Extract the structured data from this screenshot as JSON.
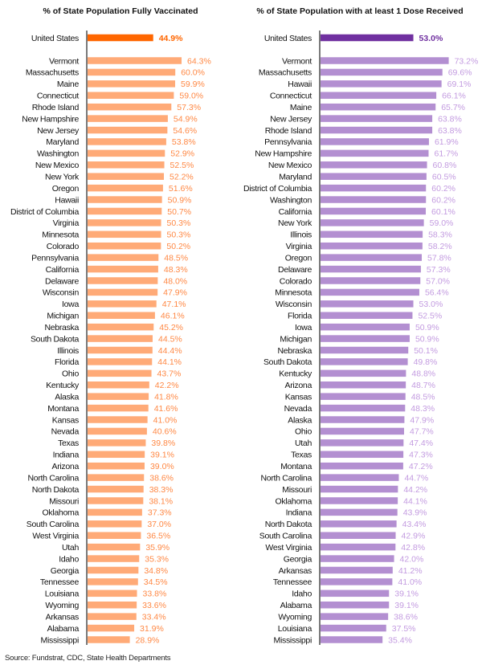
{
  "source": "Source: Fundstrat, CDC, State Health Departments",
  "chart_data": [
    {
      "type": "bar",
      "orientation": "horizontal",
      "title": "% of State Population Fully Vaccinated",
      "xlabel": "",
      "ylabel": "",
      "xlim": [
        0,
        70
      ],
      "grid": false,
      "unit": "%",
      "colors": {
        "highlight": "#ff6600",
        "bar": "#ffaa77",
        "label": "#ff8844",
        "highlight_label": "#ff6600"
      },
      "highlight": {
        "category": "United States",
        "value": 44.9,
        "label": "44.9%"
      },
      "categories": [
        "Vermont",
        "Massachusetts",
        "Maine",
        "Connecticut",
        "Rhode Island",
        "New Hampshire",
        "New Jersey",
        "Maryland",
        "Washington",
        "New Mexico",
        "New York",
        "Oregon",
        "Hawaii",
        "District of Columbia",
        "Virginia",
        "Minnesota",
        "Colorado",
        "Pennsylvania",
        "California",
        "Delaware",
        "Wisconsin",
        "Iowa",
        "Michigan",
        "Nebraska",
        "South Dakota",
        "Illinois",
        "Florida",
        "Ohio",
        "Kentucky",
        "Alaska",
        "Montana",
        "Kansas",
        "Nevada",
        "Texas",
        "Indiana",
        "Arizona",
        "North Carolina",
        "North Dakota",
        "Missouri",
        "Oklahoma",
        "South Carolina",
        "West Virginia",
        "Utah",
        "Idaho",
        "Georgia",
        "Tennessee",
        "Louisiana",
        "Wyoming",
        "Arkansas",
        "Alabama",
        "Mississippi"
      ],
      "values": [
        64.3,
        60.0,
        59.9,
        59.0,
        57.3,
        54.9,
        54.6,
        53.8,
        52.9,
        52.5,
        52.2,
        51.6,
        50.9,
        50.7,
        50.3,
        50.3,
        50.2,
        48.5,
        48.3,
        48.0,
        47.9,
        47.1,
        46.1,
        45.2,
        44.5,
        44.4,
        44.1,
        43.7,
        42.2,
        41.8,
        41.6,
        41.0,
        40.6,
        39.8,
        39.1,
        39.0,
        38.6,
        38.3,
        38.1,
        37.3,
        37.0,
        36.5,
        35.9,
        35.3,
        34.8,
        34.5,
        33.8,
        33.6,
        33.4,
        31.9,
        28.9
      ],
      "labels": [
        "64.3%",
        "60.0%",
        "59.9%",
        "59.0%",
        "57.3%",
        "54.9%",
        "54.6%",
        "53.8%",
        "52.9%",
        "52.5%",
        "52.2%",
        "51.6%",
        "50.9%",
        "50.7%",
        "50.3%",
        "50.3%",
        "50.2%",
        "48.5%",
        "48.3%",
        "48.0%",
        "47.9%",
        "47.1%",
        "46.1%",
        "45.2%",
        "44.5%",
        "44.4%",
        "44.1%",
        "43.7%",
        "42.2%",
        "41.8%",
        "41.6%",
        "41.0%",
        "40.6%",
        "39.8%",
        "39.1%",
        "39.0%",
        "38.6%",
        "38.3%",
        "38.1%",
        "37.3%",
        "37.0%",
        "36.5%",
        "35.9%",
        "35.3%",
        "34.8%",
        "34.5%",
        "33.8%",
        "33.6%",
        "33.4%",
        "31.9%",
        "28.9%"
      ]
    },
    {
      "type": "bar",
      "orientation": "horizontal",
      "title": "% of State Population with at least 1 Dose Received",
      "xlabel": "",
      "ylabel": "",
      "xlim": [
        0,
        75
      ],
      "grid": false,
      "unit": "%",
      "colors": {
        "highlight": "#7030a0",
        "bar": "#b38fd1",
        "label": "#c39be0",
        "highlight_label": "#7030a0"
      },
      "highlight": {
        "category": "United States",
        "value": 53.0,
        "label": "53.0%"
      },
      "categories": [
        "Vermont",
        "Massachusetts",
        "Hawaii",
        "Connecticut",
        "Maine",
        "New Jersey",
        "Rhode Island",
        "Pennsylvania",
        "New Hampshire",
        "New Mexico",
        "Maryland",
        "District of Columbia",
        "Washington",
        "California",
        "New York",
        "Illinois",
        "Virginia",
        "Oregon",
        "Delaware",
        "Colorado",
        "Minnesota",
        "Wisconsin",
        "Florida",
        "Iowa",
        "Michigan",
        "Nebraska",
        "South Dakota",
        "Kentucky",
        "Arizona",
        "Kansas",
        "Nevada",
        "Alaska",
        "Ohio",
        "Utah",
        "Texas",
        "Montana",
        "North Carolina",
        "Missouri",
        "Oklahoma",
        "Indiana",
        "North Dakota",
        "South Carolina",
        "West Virginia",
        "Georgia",
        "Arkansas",
        "Tennessee",
        "Idaho",
        "Alabama",
        "Wyoming",
        "Louisiana",
        "Mississippi"
      ],
      "values": [
        73.2,
        69.6,
        69.1,
        66.1,
        65.7,
        63.8,
        63.8,
        61.9,
        61.7,
        60.8,
        60.5,
        60.2,
        60.2,
        60.1,
        59.0,
        58.3,
        58.2,
        57.8,
        57.3,
        57.0,
        56.4,
        53.0,
        52.5,
        50.9,
        50.9,
        50.1,
        49.8,
        48.8,
        48.7,
        48.5,
        48.3,
        47.9,
        47.7,
        47.4,
        47.3,
        47.2,
        44.7,
        44.2,
        44.1,
        43.9,
        43.4,
        42.9,
        42.8,
        42.0,
        41.2,
        41.0,
        39.1,
        39.1,
        38.6,
        37.5,
        35.4
      ],
      "labels": [
        "73.2%",
        "69.6%",
        "69.1%",
        "66.1%",
        "65.7%",
        "63.8%",
        "63.8%",
        "61.9%",
        "61.7%",
        "60.8%",
        "60.5%",
        "60.2%",
        "60.2%",
        "60.1%",
        "59.0%",
        "58.3%",
        "58.2%",
        "57.8%",
        "57.3%",
        "57.0%",
        "56.4%",
        "53.0%",
        "52.5%",
        "50.9%",
        "50.9%",
        "50.1%",
        "49.8%",
        "48.8%",
        "48.7%",
        "48.5%",
        "48.3%",
        "47.9%",
        "47.7%",
        "47.4%",
        "47.3%",
        "47.2%",
        "44.7%",
        "44.2%",
        "44.1%",
        "43.9%",
        "43.4%",
        "42.9%",
        "42.8%",
        "42.0%",
        "41.2%",
        "41.0%",
        "39.1%",
        "39.1%",
        "38.6%",
        "37.5%",
        "35.4%"
      ]
    }
  ]
}
